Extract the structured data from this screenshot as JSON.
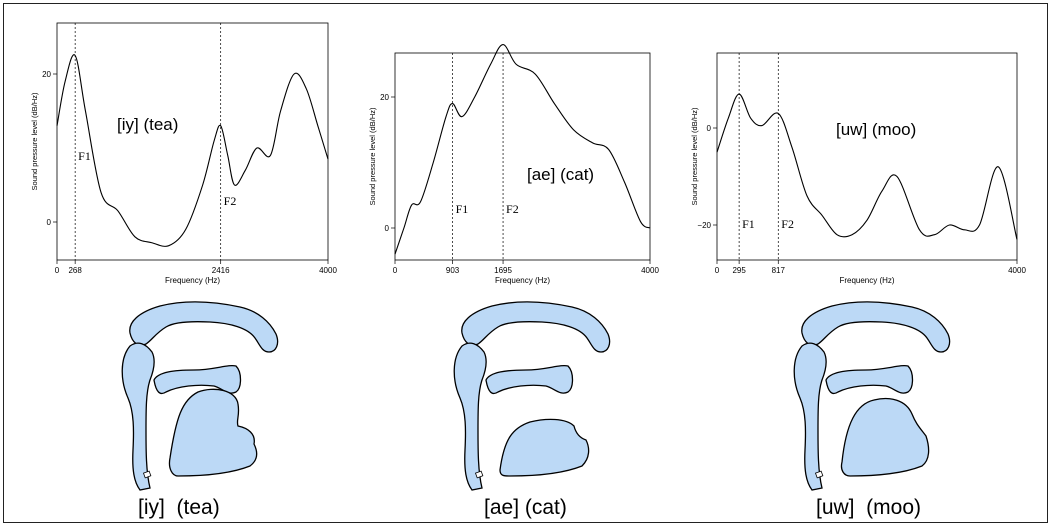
{
  "chart_data": [
    {
      "type": "line",
      "title": "",
      "annotation": "[iy]  (tea)",
      "xlabel": "Frequency (Hz)",
      "ylabel": "Sound pressure level (dB/Hz)",
      "xlim": [
        0,
        4000
      ],
      "ylim": [
        -4,
        23
      ],
      "xticks": [
        "0",
        "268",
        "2416",
        "4000"
      ],
      "yticks": [
        "0",
        "20"
      ],
      "formants": [
        {
          "label": "F1",
          "x": 268
        },
        {
          "label": "F2",
          "x": 2416
        }
      ],
      "x": [
        0,
        120,
        268,
        420,
        650,
        900,
        1150,
        1400,
        1650,
        1900,
        2150,
        2320,
        2416,
        2520,
        2620,
        2780,
        2950,
        3150,
        3300,
        3500,
        3680,
        3850,
        4000
      ],
      "y": [
        13,
        19,
        22.5,
        15,
        4,
        1.5,
        -2,
        -2.8,
        -3.2,
        -1,
        5,
        11,
        13,
        9,
        5,
        7,
        10,
        9,
        15,
        20,
        18,
        13,
        8.5
      ]
    },
    {
      "type": "line",
      "title": "",
      "annotation": "[ae] (cat)",
      "xlabel": "Frequency (Hz)",
      "ylabel": "Sound pressure level (dB/Hz)",
      "xlim": [
        0,
        4000
      ],
      "ylim": [
        -4,
        31
      ],
      "xticks": [
        "0",
        "903",
        "1695",
        "4000"
      ],
      "yticks": [
        "0",
        "20"
      ],
      "formants": [
        {
          "label": "F1",
          "x": 903
        },
        {
          "label": "F2",
          "x": 1695
        }
      ],
      "x": [
        0,
        140,
        260,
        400,
        600,
        800,
        903,
        1050,
        1250,
        1500,
        1695,
        1900,
        2200,
        2500,
        2800,
        3100,
        3350,
        3600,
        3850,
        4000
      ],
      "y": [
        -4,
        0,
        3.5,
        4,
        10,
        17,
        19,
        17,
        20,
        25,
        28,
        25,
        23.5,
        19,
        15,
        13,
        12,
        7,
        1,
        0
      ]
    },
    {
      "type": "line",
      "title": "",
      "annotation": "[uw]  (moo)",
      "xlabel": "Frequency (Hz)",
      "ylabel": "Sound pressure level (dB/Hz)",
      "xlim": [
        0,
        4000
      ],
      "ylim": [
        -27,
        12
      ],
      "xticks": [
        "0",
        "295",
        "817",
        "4000"
      ],
      "yticks": [
        "0",
        "-20"
      ],
      "formants": [
        {
          "label": "F1",
          "x": 295
        },
        {
          "label": "F2",
          "x": 817
        }
      ],
      "x": [
        0,
        150,
        295,
        450,
        600,
        817,
        1000,
        1200,
        1400,
        1600,
        1800,
        2000,
        2200,
        2400,
        2700,
        2900,
        3100,
        3300,
        3500,
        3750,
        4000
      ],
      "y": [
        -5,
        2,
        7,
        2,
        0.5,
        3,
        -4,
        -14,
        -18,
        -22,
        -22,
        -19,
        -13,
        -10,
        -21,
        -22,
        -20,
        -21,
        -20,
        -8,
        -23
      ]
    }
  ],
  "captions": [
    "[iy]  (tea)",
    "[ae] (cat)",
    "[uw]  (moo)"
  ],
  "colors": {
    "tract_fill": "#bcd9f6",
    "outline": "#000000"
  }
}
